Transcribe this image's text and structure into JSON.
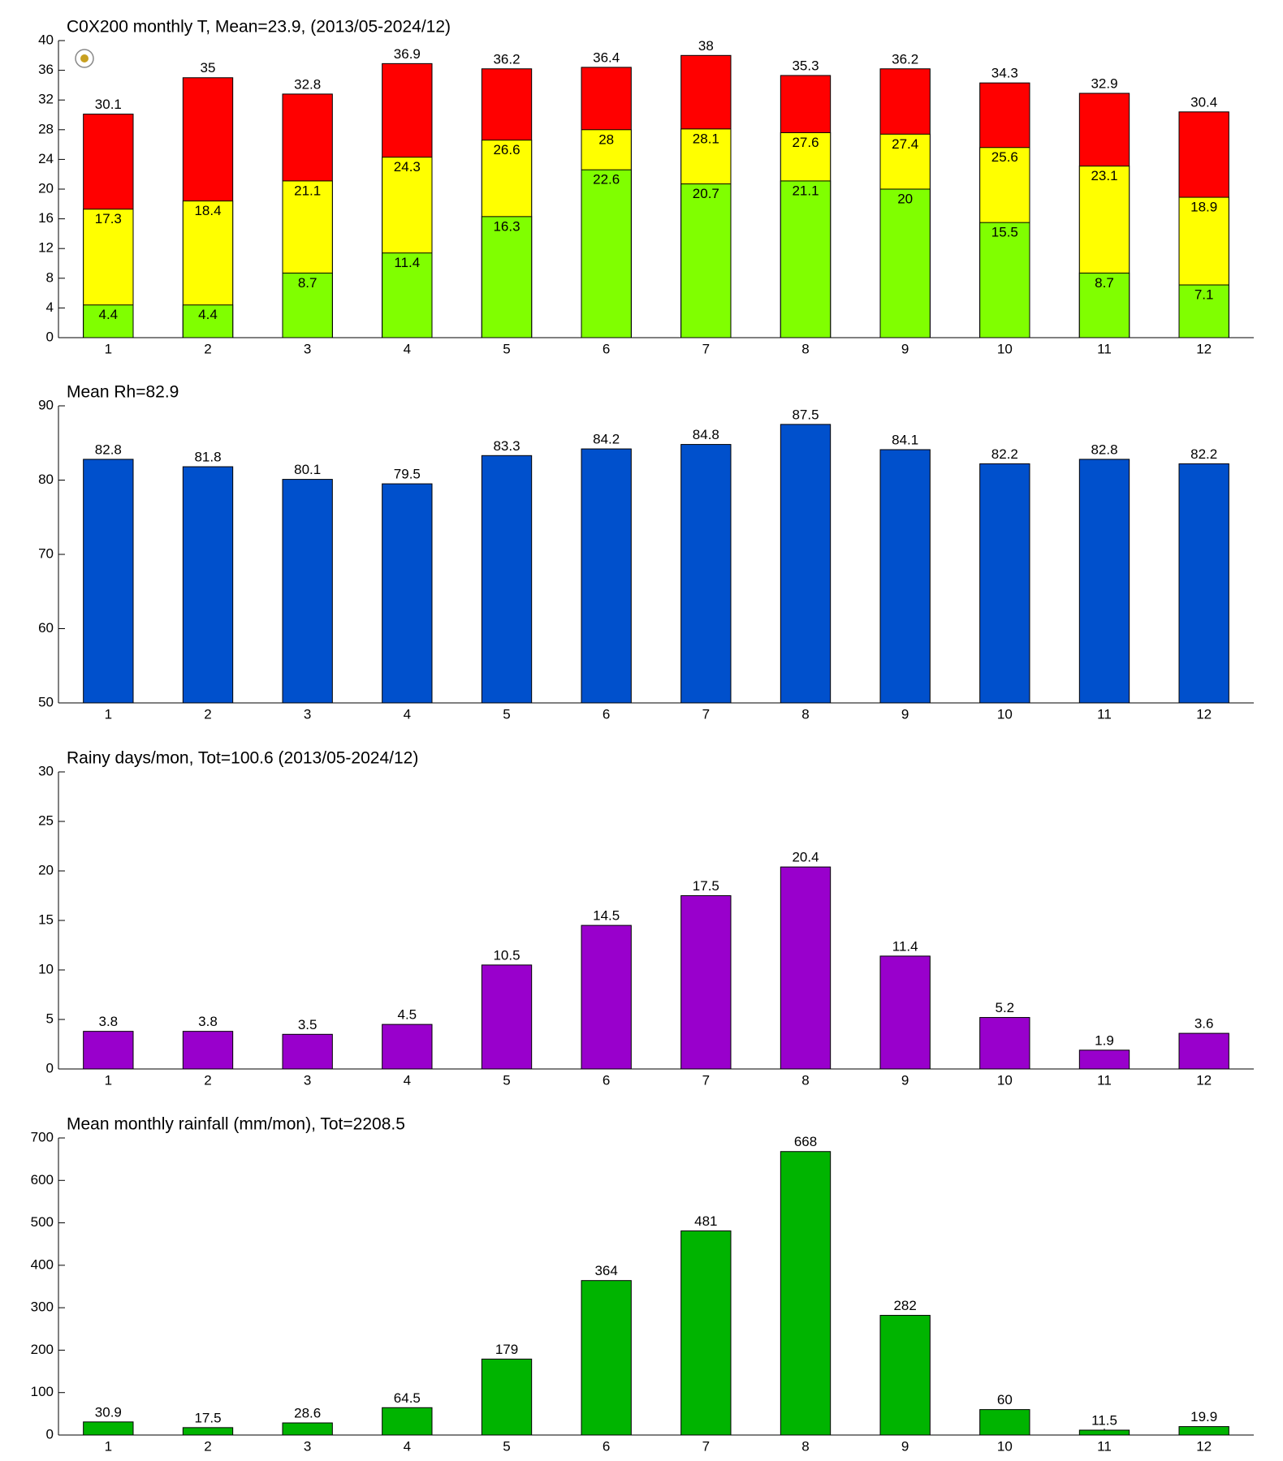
{
  "chart_data": [
    {
      "type": "bar",
      "title": "C0X200 monthly T, Mean=23.9, (2013/05-2024/12)",
      "categories": [
        "1",
        "2",
        "3",
        "4",
        "5",
        "6",
        "7",
        "8",
        "9",
        "10",
        "11",
        "12"
      ],
      "series": [
        {
          "color": "#80ff00",
          "values": [
            4.4,
            4.4,
            8.7,
            11.4,
            16.3,
            22.6,
            20.7,
            21.1,
            20,
            15.5,
            8.7,
            7.1
          ]
        },
        {
          "color": "#ffff00",
          "values": [
            17.3,
            18.4,
            21.1,
            24.3,
            26.6,
            28,
            28.1,
            27.6,
            27.4,
            25.6,
            23.1,
            18.9
          ]
        },
        {
          "color": "#ff0000",
          "values": [
            30.1,
            35,
            32.8,
            36.9,
            36.2,
            36.4,
            38,
            35.3,
            36.2,
            34.3,
            32.9,
            30.4
          ]
        }
      ],
      "ylim": [
        0,
        40
      ],
      "yticks": [
        0,
        4,
        8,
        12,
        16,
        20,
        24,
        28,
        32,
        36,
        40
      ]
    },
    {
      "type": "bar",
      "title": "Mean Rh=82.9",
      "categories": [
        "1",
        "2",
        "3",
        "4",
        "5",
        "6",
        "7",
        "8",
        "9",
        "10",
        "11",
        "12"
      ],
      "series": [
        {
          "color": "#0050cc",
          "values": [
            82.8,
            81.8,
            80.1,
            79.5,
            83.3,
            84.2,
            84.8,
            87.5,
            84.1,
            82.2,
            82.8,
            82.2
          ]
        }
      ],
      "ylim": [
        50,
        90
      ],
      "yticks": [
        50,
        60,
        70,
        80,
        90
      ]
    },
    {
      "type": "bar",
      "title": "Rainy days/mon, Tot=100.6 (2013/05-2024/12)",
      "categories": [
        "1",
        "2",
        "3",
        "4",
        "5",
        "6",
        "7",
        "8",
        "9",
        "10",
        "11",
        "12"
      ],
      "series": [
        {
          "color": "#9900cc",
          "values": [
            3.8,
            3.8,
            3.5,
            4.5,
            10.5,
            14.5,
            17.5,
            20.4,
            11.4,
            5.2,
            1.9,
            3.6
          ]
        }
      ],
      "ylim": [
        0,
        30
      ],
      "yticks": [
        0,
        5,
        10,
        15,
        20,
        25,
        30
      ]
    },
    {
      "type": "bar",
      "title": "Mean monthly rainfall (mm/mon), Tot=2208.5",
      "categories": [
        "1",
        "2",
        "3",
        "4",
        "5",
        "6",
        "7",
        "8",
        "9",
        "10",
        "11",
        "12"
      ],
      "series": [
        {
          "color": "#00b400",
          "values": [
            30.9,
            17.5,
            28.6,
            64.5,
            179,
            364,
            481,
            668,
            282,
            60,
            11.5,
            19.9
          ]
        }
      ],
      "ylim": [
        0,
        700
      ],
      "yticks": [
        0,
        100,
        200,
        300,
        400,
        500,
        600,
        700
      ]
    }
  ]
}
